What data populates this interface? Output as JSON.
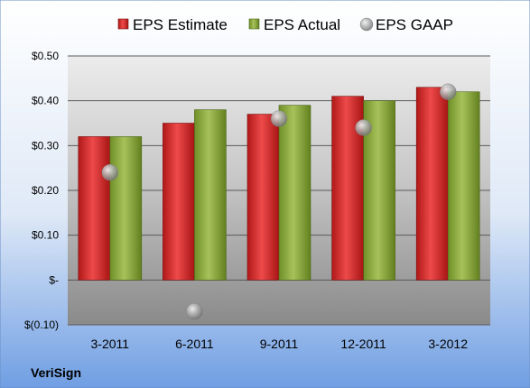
{
  "company": "VeriSign",
  "colors": {
    "estimate": "#cc2222",
    "actual": "#88aa33",
    "gaap": "#a8a8a8"
  },
  "chart_data": {
    "type": "bar",
    "categories": [
      "3-2011",
      "6-2011",
      "9-2011",
      "12-2011",
      "3-2012"
    ],
    "series": [
      {
        "name": "EPS Estimate",
        "kind": "bar",
        "values": [
          0.32,
          0.35,
          0.37,
          0.41,
          0.43
        ]
      },
      {
        "name": "EPS Actual",
        "kind": "bar",
        "values": [
          0.32,
          0.38,
          0.39,
          0.4,
          0.42
        ]
      },
      {
        "name": "EPS GAAP",
        "kind": "scatter",
        "values": [
          0.24,
          -0.07,
          0.36,
          0.34,
          0.42
        ]
      }
    ],
    "ylim": [
      -0.1,
      0.5
    ],
    "yticks": [
      -0.1,
      0,
      0.1,
      0.2,
      0.3,
      0.4,
      0.5
    ],
    "ytick_labels": [
      "$(0.10)",
      "$-",
      "$0.10",
      "$0.20",
      "$0.30",
      "$0.40",
      "$0.50"
    ],
    "grid": true,
    "legend": "top"
  }
}
